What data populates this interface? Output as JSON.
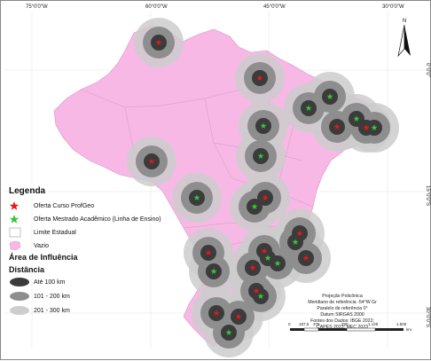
{
  "coords": {
    "top": [
      "75°0'0\"W",
      "60°0'0\"W",
      "45°0'0\"W",
      "30°0'0\"W"
    ],
    "right": [
      "0°0'0\"",
      "15°0'0\"S",
      "30°0'0\"S"
    ]
  },
  "north_label": "N",
  "legend": {
    "title": "Legenda",
    "items": [
      {
        "label": "Oferta Curso ProfGeo",
        "symbol": "star",
        "color": "#e8171b"
      },
      {
        "label": "Oferta Mestrado Acadêmico (Linha de Ensino)",
        "symbol": "star",
        "color": "#38c43a"
      },
      {
        "label": "Limite Estadual",
        "symbol": "line",
        "color": "#9a9a9a"
      },
      {
        "label": "Vazio",
        "symbol": "area",
        "color": "#f7b8e6"
      }
    ],
    "influence_title": "Área de Influência",
    "distance_title": "Distância",
    "distances": [
      {
        "label": "Até 100 km",
        "color": "#3b3b3b"
      },
      {
        "label": "101 - 200 km",
        "color": "#8e8e8e"
      },
      {
        "label": "201 - 300 km",
        "color": "#cdcdcd"
      }
    ]
  },
  "credits": [
    "Projeção Policônica",
    "Meridiano de referência -54°W Gr",
    "Paralelo de referência 0°",
    "Datum SIRGAS 2000",
    "Fontes dos Dados: IBGE 2022;",
    "CAPES 2023; MEC 2023"
  ],
  "scale": {
    "ticks": [
      "0",
      "187,5",
      "375",
      "750",
      "1.125",
      "1.500"
    ],
    "unit": "km"
  },
  "colors": {
    "land": "#f7b8e6",
    "outer": "#cdcdcd",
    "mid": "#8e8e8e",
    "inner": "#3b3b3b",
    "red": "#e8171b",
    "green": "#38c43a"
  }
}
